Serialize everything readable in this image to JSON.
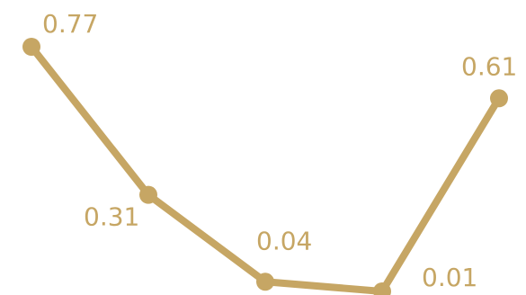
{
  "chart_data": {
    "type": "line",
    "x": [
      1,
      2,
      3,
      4,
      5
    ],
    "values": [
      0.77,
      0.31,
      0.04,
      0.01,
      0.61
    ],
    "data_labels": [
      "0.77",
      "0.31",
      "0.04",
      "0.01",
      "0.61"
    ],
    "title": "",
    "xlabel": "",
    "ylabel": "",
    "ylim": [
      0,
      0.8
    ],
    "grid": false,
    "legend": "none",
    "color": "#c6a664"
  }
}
